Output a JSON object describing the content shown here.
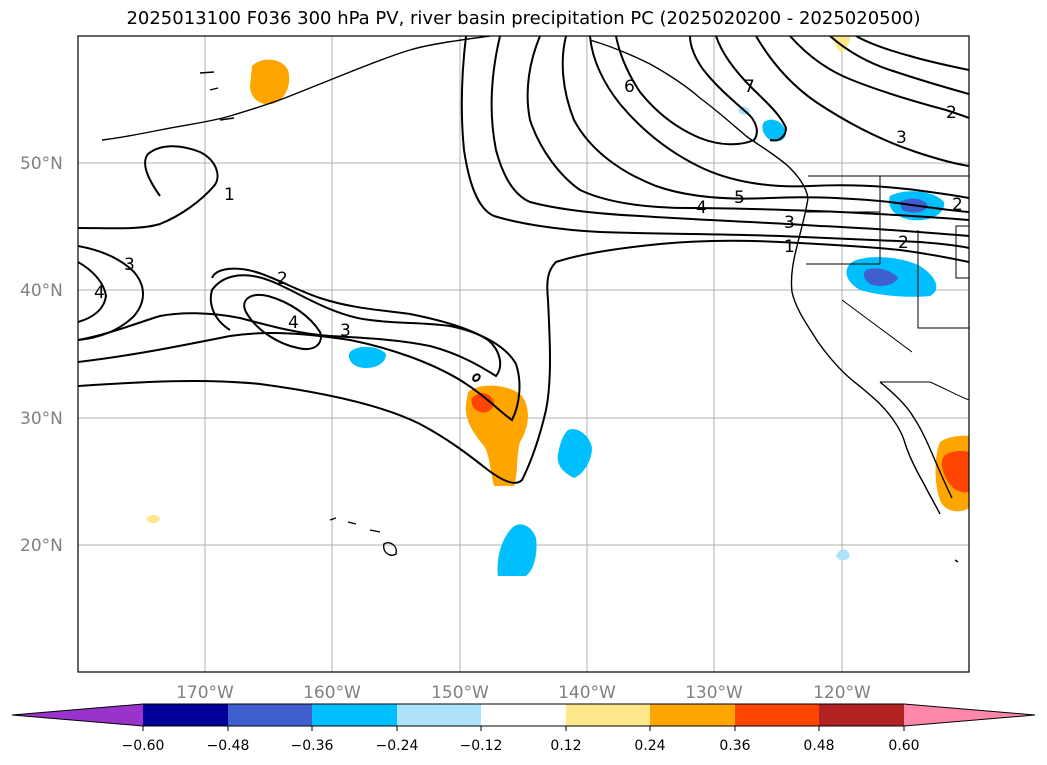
{
  "title": "2025013100 F036 300 hPa PV, river basin precipitation PC (2025020200 - 2025020500)",
  "map": {
    "lat_labels": [
      "50°N",
      "40°N",
      "30°N",
      "20°N"
    ],
    "lon_labels": [
      "170°W",
      "160°W",
      "150°W",
      "140°W",
      "130°W",
      "120°W"
    ],
    "grid_color": "#b0b0b0",
    "contour_color": "#000000",
    "contour_labels": [
      "1",
      "2",
      "3",
      "4",
      "3",
      "2",
      "4",
      "6",
      "7",
      "5",
      "4",
      "3",
      "1",
      "2",
      "3",
      "2"
    ]
  },
  "colorbar": {
    "colors": [
      "#9933cc",
      "#000099",
      "#3f5fcf",
      "#00bfff",
      "#aee2fb",
      "#ffffff",
      "#ffe88c",
      "#ffa500",
      "#ff4500",
      "#b22222",
      "#ff88aa"
    ],
    "tick_labels": [
      "−0.60",
      "−0.48",
      "−0.36",
      "−0.24",
      "−0.12",
      "0.12",
      "0.24",
      "0.36",
      "0.48",
      "0.60"
    ]
  }
}
